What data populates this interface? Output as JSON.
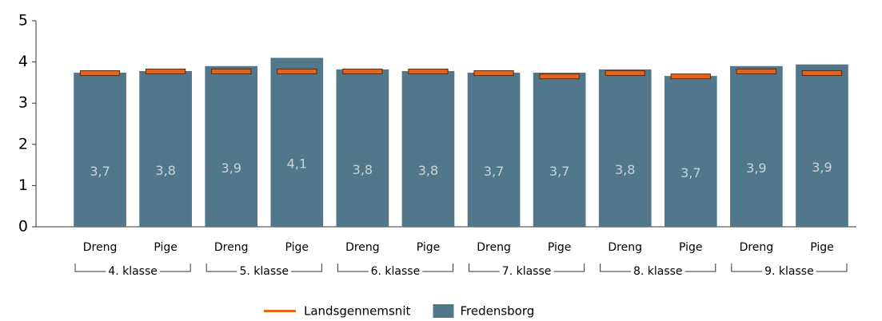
{
  "chart_data": {
    "type": "bar",
    "categories": [
      "Dreng",
      "Pige",
      "Dreng",
      "Pige",
      "Dreng",
      "Pige",
      "Dreng",
      "Pige",
      "Dreng",
      "Pige",
      "Dreng",
      "Pige"
    ],
    "groups": [
      "4. klasse",
      "5. klasse",
      "6. klasse",
      "7. klasse",
      "8. klasse",
      "9. klasse"
    ],
    "series": [
      {
        "name": "Landsgennemsnit",
        "type": "marker",
        "color": "#e8621a",
        "values": [
          3.73,
          3.77,
          3.77,
          3.77,
          3.77,
          3.77,
          3.73,
          3.65,
          3.73,
          3.65,
          3.77,
          3.73
        ]
      },
      {
        "name": "Fredensborg",
        "type": "bar",
        "color": "#51788a",
        "values": [
          3.74,
          3.78,
          3.9,
          4.1,
          3.82,
          3.78,
          3.74,
          3.74,
          3.82,
          3.66,
          3.9,
          3.94
        ],
        "value_labels": [
          "3,7",
          "3,8",
          "3,9",
          "4,1",
          "3,8",
          "3,8",
          "3,7",
          "3,7",
          "3,8",
          "3,7",
          "3,9",
          "3,9"
        ]
      }
    ],
    "ylim": [
      0,
      5
    ],
    "yticks": [
      0,
      1,
      2,
      3,
      4,
      5
    ]
  }
}
